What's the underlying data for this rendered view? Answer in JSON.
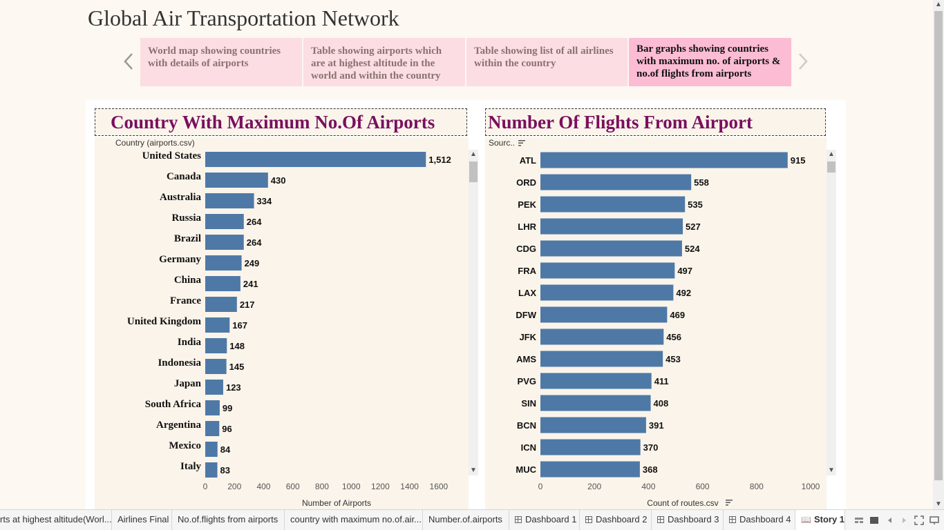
{
  "story": {
    "title": "Global Air Transportation Network",
    "points": [
      "World map showing countries with details of airports",
      "Table showing airports which are at highest altitude in the world and within the country",
      "Table showing list of all airlines within the country",
      "Bar graphs showing countries with maximum no. of airports & no.of flights from airports"
    ],
    "active_point": 3
  },
  "left_panel": {
    "title": "Country With Maximum No.Of Airports",
    "field_header": "Country (airports.csv)"
  },
  "right_panel": {
    "title": "Number Of Flights From Airport",
    "field_header": "Sourc.."
  },
  "chart_data": [
    {
      "type": "bar",
      "orientation": "horizontal",
      "title": "Country With Maximum No.Of Airports",
      "ylabel": "Country (airports.csv)",
      "xlabel": "Number of Airports",
      "categories": [
        "United States",
        "Canada",
        "Australia",
        "Russia",
        "Brazil",
        "Germany",
        "China",
        "France",
        "United Kingdom",
        "India",
        "Indonesia",
        "Japan",
        "South Africa",
        "Argentina",
        "Mexico",
        "Italy"
      ],
      "values": [
        1512,
        430,
        334,
        264,
        264,
        249,
        241,
        217,
        167,
        148,
        145,
        123,
        99,
        96,
        84,
        83
      ],
      "value_labels": [
        "1,512",
        "430",
        "334",
        "264",
        "264",
        "249",
        "241",
        "217",
        "167",
        "148",
        "145",
        "123",
        "99",
        "96",
        "84",
        "83"
      ],
      "xlim": [
        0,
        1700
      ],
      "xticks": [
        0,
        200,
        400,
        600,
        800,
        1000,
        1200,
        1400,
        1600
      ],
      "bar_color": "#4e79a7"
    },
    {
      "type": "bar",
      "orientation": "horizontal",
      "title": "Number Of Flights From Airport",
      "ylabel": "Sourc..",
      "xlabel": "Count of routes.csv",
      "categories": [
        "ATL",
        "ORD",
        "PEK",
        "LHR",
        "CDG",
        "FRA",
        "LAX",
        "DFW",
        "JFK",
        "AMS",
        "PVG",
        "SIN",
        "BCN",
        "ICN",
        "MUC"
      ],
      "values": [
        915,
        558,
        535,
        527,
        524,
        497,
        492,
        469,
        456,
        453,
        411,
        408,
        391,
        370,
        368
      ],
      "value_labels": [
        "915",
        "558",
        "535",
        "527",
        "524",
        "497",
        "492",
        "469",
        "456",
        "453",
        "411",
        "408",
        "391",
        "370",
        "368"
      ],
      "xlim": [
        0,
        1000
      ],
      "xticks": [
        0,
        200,
        400,
        600,
        800,
        1000
      ],
      "bar_color": "#4e79a7"
    }
  ],
  "tabs": [
    {
      "label": "rts at highest altitude(Worl...",
      "icon": "sheet"
    },
    {
      "label": "Airlines Final",
      "icon": "sheet"
    },
    {
      "label": "No.of.flights from airports",
      "icon": "sheet"
    },
    {
      "label": "country with maximum no.of.air...",
      "icon": "sheet"
    },
    {
      "label": "Number.of.airports",
      "icon": "sheet"
    },
    {
      "label": "Dashboard 1",
      "icon": "dashboard"
    },
    {
      "label": "Dashboard 2",
      "icon": "dashboard"
    },
    {
      "label": "Dashboard 3",
      "icon": "dashboard"
    },
    {
      "label": "Dashboard 4",
      "icon": "dashboard"
    },
    {
      "label": "Story 1",
      "icon": "story"
    }
  ]
}
